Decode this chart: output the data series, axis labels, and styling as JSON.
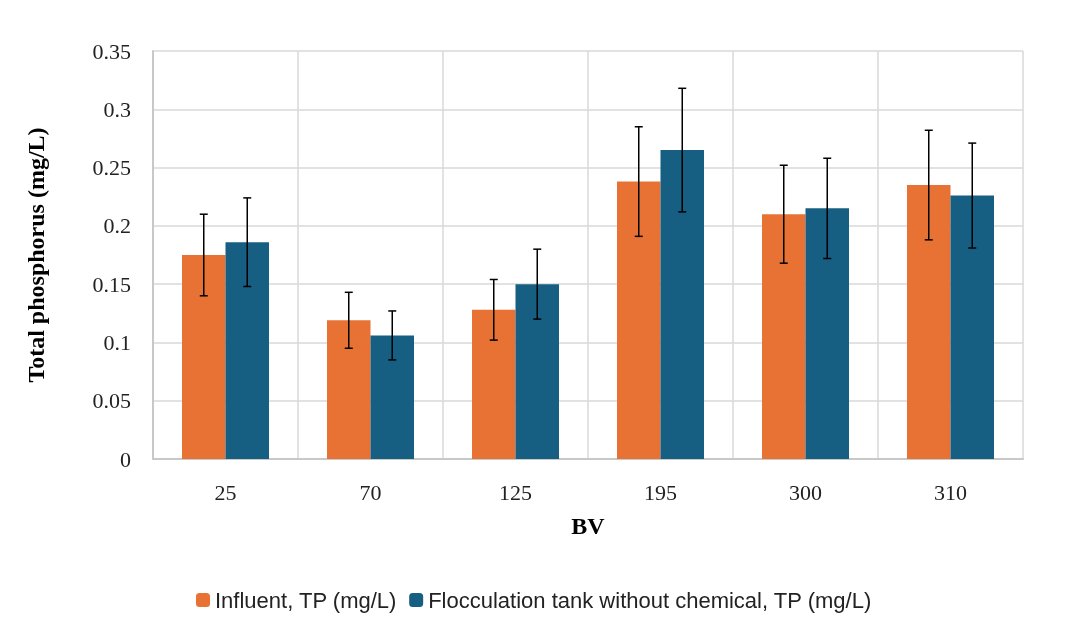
{
  "chart_data": {
    "type": "bar",
    "xlabel": "BV",
    "ylabel": "Total phosphorus (mg/L)",
    "categories": [
      "25",
      "70",
      "125",
      "195",
      "300",
      "310"
    ],
    "series": [
      {
        "name": "Influent, TP (mg/L)",
        "color": "#e87234",
        "values": [
          0.175,
          0.119,
          0.128,
          0.238,
          0.21,
          0.235
        ],
        "errors": [
          0.035,
          0.024,
          0.026,
          0.047,
          0.042,
          0.047
        ]
      },
      {
        "name": "Flocculation tank without chemical, TP (mg/L)",
        "color": "#175f82",
        "values": [
          0.186,
          0.106,
          0.15,
          0.265,
          0.215,
          0.226
        ],
        "errors": [
          0.038,
          0.021,
          0.03,
          0.053,
          0.043,
          0.045
        ]
      }
    ],
    "ylim": [
      0,
      0.35
    ],
    "yticks": [
      0,
      0.05,
      0.1,
      0.15,
      0.2,
      0.25,
      0.3,
      0.35
    ],
    "grid": true,
    "legend": "bottom"
  }
}
